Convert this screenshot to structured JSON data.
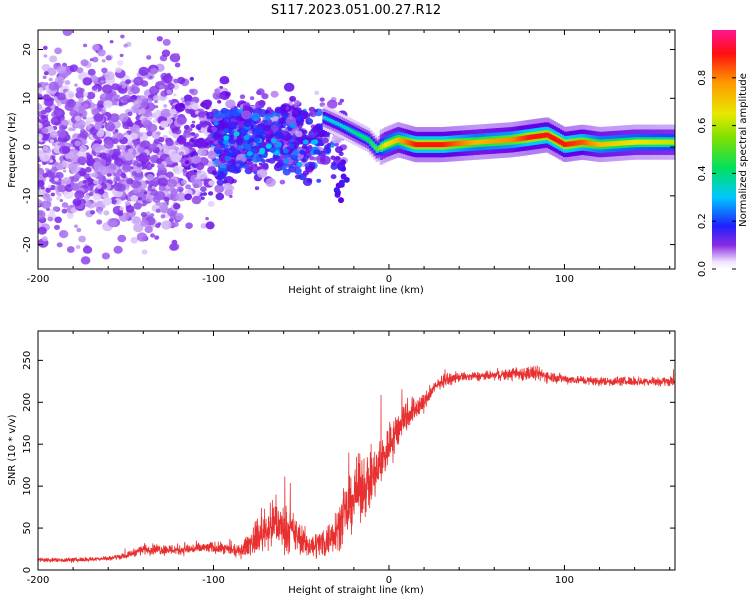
{
  "chart_data": [
    {
      "type": "heatmap",
      "title": "S117.2023.051.00.27.R12",
      "xlabel": "Height of straight line (km)",
      "ylabel": "Frequency (Hz)",
      "xlim": [
        -200,
        163
      ],
      "ylim": [
        -25,
        24
      ],
      "x_ticks": [
        -200,
        -100,
        0,
        100
      ],
      "x_tick_labels": [
        "-200",
        "-100",
        "0",
        "100"
      ],
      "y_ticks": [
        -20,
        -10,
        0,
        10,
        20
      ],
      "y_tick_labels": [
        "-20",
        "-10",
        "0",
        "10",
        "20"
      ],
      "colorbar": {
        "label": "Normalized spectral amplitude",
        "range": [
          0,
          1
        ],
        "ticks": [
          0.0,
          0.2,
          0.4,
          0.6,
          0.8
        ],
        "tick_labels": [
          "0.0",
          "0.2",
          "0.4",
          "0.6",
          "0.8"
        ]
      },
      "signal_ridge": {
        "description_points_height_km": [
          -37,
          -28,
          -20,
          -12,
          -7,
          -2,
          5,
          15,
          30,
          50,
          70,
          80,
          90,
          100,
          110,
          120,
          140,
          163
        ],
        "frequency_hz": [
          6,
          4.5,
          3,
          1.5,
          -0.5,
          0.5,
          1.5,
          0.5,
          0.5,
          1,
          1.5,
          2,
          2.5,
          0.5,
          1,
          0.5,
          1,
          1
        ],
        "peak_amplitude": [
          0.45,
          0.45,
          0.5,
          0.55,
          0.6,
          0.75,
          0.8,
          0.95,
          0.95,
          0.8,
          0.85,
          0.95,
          0.95,
          0.95,
          0.9,
          0.8,
          0.75,
          0.7
        ]
      }
    },
    {
      "type": "line",
      "xlabel": "Height of straight line (km)",
      "ylabel": "SNR (10 * v/v)",
      "xlim": [
        -200,
        163
      ],
      "ylim": [
        0,
        285
      ],
      "x_ticks": [
        -200,
        -100,
        0,
        100
      ],
      "x_tick_labels": [
        "-200",
        "-100",
        "0",
        "100"
      ],
      "y_ticks": [
        0,
        50,
        100,
        150,
        200,
        250
      ],
      "y_tick_labels": [
        "0",
        "50",
        "100",
        "150",
        "200",
        "250"
      ],
      "series": [
        {
          "name": "SNR",
          "color": "#e83030",
          "x": [
            -200,
            -180,
            -160,
            -150,
            -140,
            -120,
            -100,
            -85,
            -75,
            -65,
            -55,
            -45,
            -35,
            -25,
            -18,
            -10,
            -5,
            0,
            10,
            20,
            25,
            30,
            40,
            60,
            80,
            100,
            120,
            140,
            163
          ],
          "y": [
            12,
            12,
            14,
            17,
            25,
            24,
            27,
            22,
            40,
            55,
            45,
            28,
            35,
            65,
            95,
            105,
            125,
            150,
            185,
            200,
            215,
            225,
            230,
            232,
            235,
            228,
            225,
            225,
            225
          ],
          "noise_amplitude": [
            4,
            4,
            4,
            5,
            9,
            10,
            10,
            10,
            30,
            40,
            35,
            20,
            30,
            45,
            55,
            50,
            45,
            40,
            30,
            15,
            12,
            10,
            8,
            8,
            14,
            8,
            8,
            8,
            8
          ]
        }
      ]
    }
  ]
}
